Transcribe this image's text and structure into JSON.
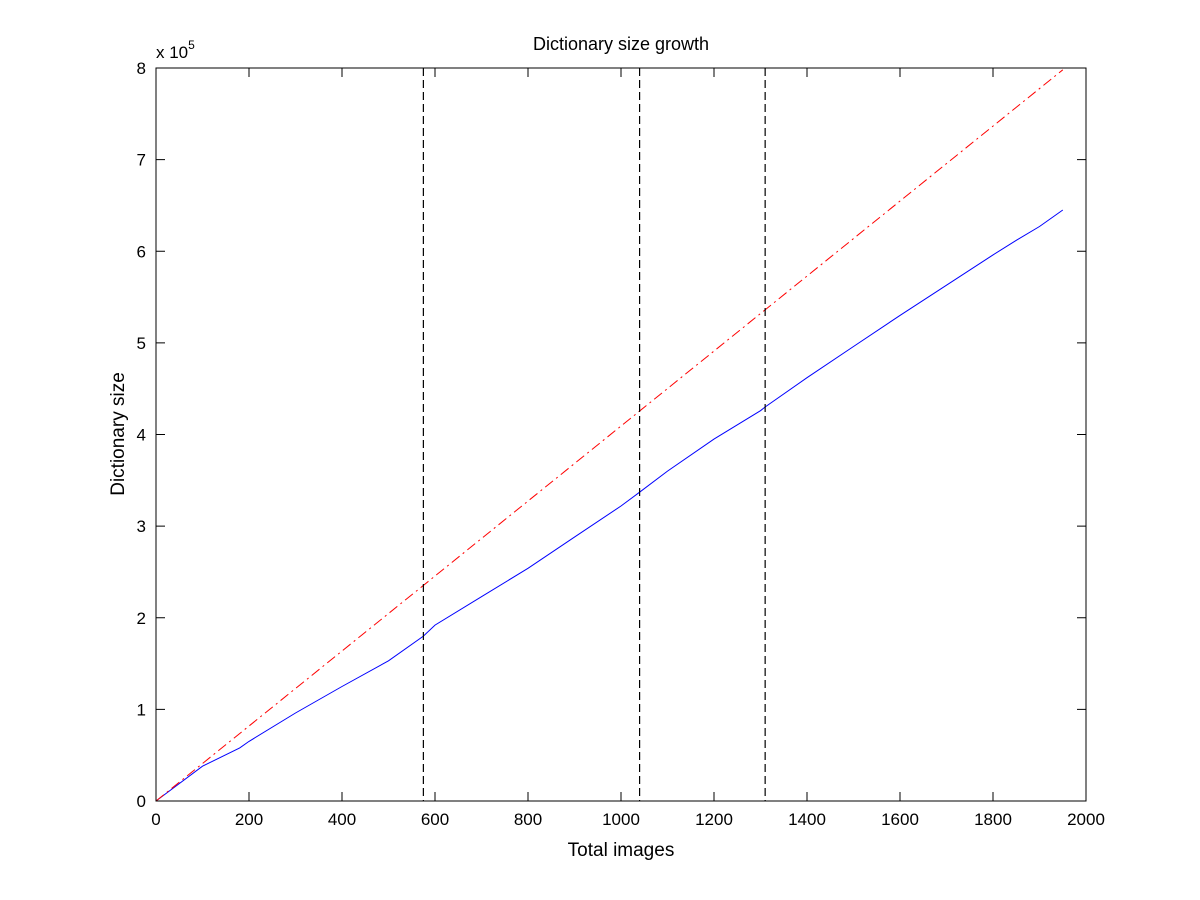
{
  "chart_data": {
    "type": "line",
    "title": "Dictionary size growth",
    "xlabel": "Total images",
    "ylabel": "Dictionary size",
    "xlim": [
      0,
      2000
    ],
    "ylim": [
      0,
      800000
    ],
    "x_ticks": [
      0,
      200,
      400,
      600,
      800,
      1000,
      1200,
      1400,
      1600,
      1800,
      2000
    ],
    "x_tick_labels": [
      "0",
      "200",
      "400",
      "600",
      "800",
      "1000",
      "1200",
      "1400",
      "1600",
      "1800",
      "2000"
    ],
    "y_ticks": [
      0,
      100000,
      200000,
      300000,
      400000,
      500000,
      600000,
      700000,
      800000
    ],
    "y_tick_labels": [
      "0",
      "1",
      "2",
      "3",
      "4",
      "5",
      "6",
      "7",
      "8"
    ],
    "y_exponent_label": "x 10",
    "y_exponent_power": "5",
    "grid": false,
    "legend": "none",
    "series": [
      {
        "color": "#0000ff",
        "style": "solid",
        "x": [
          0,
          100,
          180,
          200,
          300,
          400,
          500,
          575,
          600,
          700,
          800,
          900,
          1000,
          1040,
          1100,
          1200,
          1300,
          1310,
          1400,
          1500,
          1600,
          1700,
          1800,
          1850,
          1900,
          1950
        ],
        "y": [
          0,
          38000,
          58000,
          65000,
          96000,
          125000,
          153000,
          180000,
          192000,
          223000,
          254000,
          288000,
          322000,
          337000,
          360000,
          395000,
          426000,
          430000,
          462000,
          496000,
          530000,
          563000,
          596000,
          612000,
          627000,
          645000
        ]
      },
      {
        "color": "#ff0000",
        "style": "dash-dot",
        "x": [
          0,
          1950
        ],
        "y": [
          0,
          798000
        ]
      }
    ],
    "vertical_lines": [
      {
        "x": 575,
        "color": "#000000",
        "style": "dashed"
      },
      {
        "x": 1040,
        "color": "#000000",
        "style": "dashed"
      },
      {
        "x": 1310,
        "color": "#000000",
        "style": "dashed"
      }
    ]
  }
}
